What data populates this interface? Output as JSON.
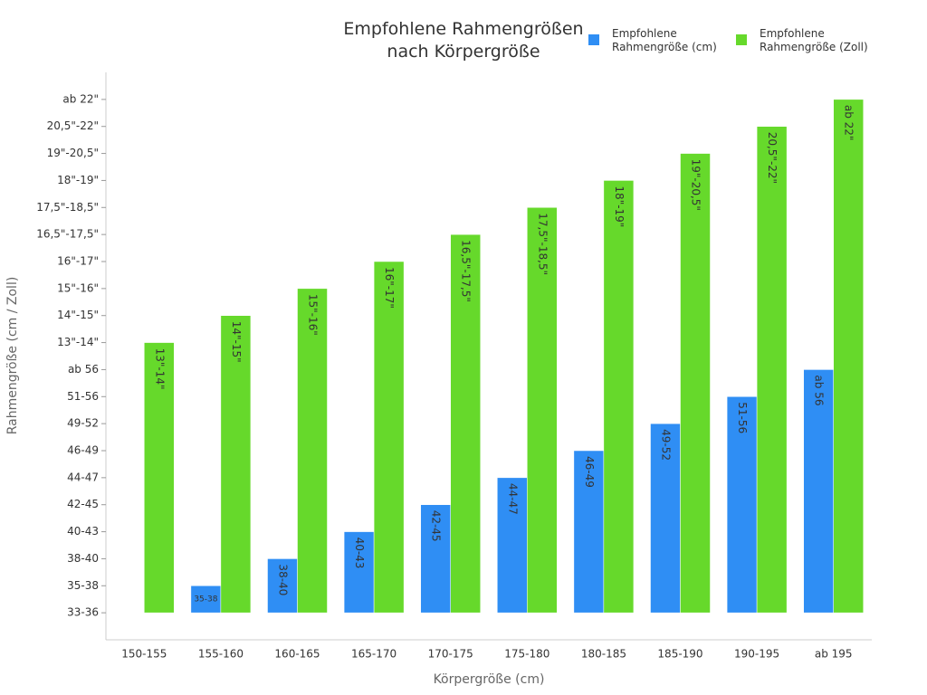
{
  "chart_data": {
    "type": "bar",
    "title": "Empfohlene Rahmengrößen nach Körpergröße",
    "x_label": "Körpergröße (cm)",
    "y_label": "Rahmengröße (cm / Zoll)",
    "categories": [
      "150-155",
      "155-160",
      "160-165",
      "165-170",
      "170-175",
      "175-180",
      "180-185",
      "185-190",
      "190-195",
      "ab 195"
    ],
    "series": [
      {
        "name": "Empfohlene Rahmengröße (cm)",
        "color": "#2f8ef4",
        "values": [
          0,
          1,
          2,
          3,
          4,
          5,
          6,
          7,
          8,
          9
        ],
        "value_labels": [
          null,
          "35-38",
          "38-40",
          "40-43",
          "42-45",
          "44-47",
          "46-49",
          "49-52",
          "51-56",
          "ab 56"
        ]
      },
      {
        "name": "Empfohlene Rahmengröße (Zoll)",
        "color": "#66d92b",
        "values": [
          10,
          11,
          12,
          13,
          14,
          15,
          16,
          17,
          18,
          19
        ],
        "value_labels": [
          "13\"-14\"",
          "14\"-15\"",
          "15\"-16\"",
          "16\"-17\"",
          "16,5\"-17,5\"",
          "17,5\"-18,5\"",
          "18\"-19\"",
          "19\"-20,5\"",
          "20,5\"-22\"",
          "ab 22\""
        ]
      }
    ],
    "ylim": [
      -1,
      20
    ],
    "yticks": [
      {
        "value": 0,
        "label": "33-36"
      },
      {
        "value": 1,
        "label": "35-38"
      },
      {
        "value": 2,
        "label": "38-40"
      },
      {
        "value": 3,
        "label": "40-43"
      },
      {
        "value": 4,
        "label": "42-45"
      },
      {
        "value": 5,
        "label": "44-47"
      },
      {
        "value": 6,
        "label": "46-49"
      },
      {
        "value": 7,
        "label": "49-52"
      },
      {
        "value": 8,
        "label": "51-56"
      },
      {
        "value": 9,
        "label": "ab 56"
      },
      {
        "value": 10,
        "label": "13\"-14\""
      },
      {
        "value": 11,
        "label": "14\"-15\""
      },
      {
        "value": 12,
        "label": "15\"-16\""
      },
      {
        "value": 13,
        "label": "16\"-17\""
      },
      {
        "value": 14,
        "label": "16,5\"-17,5\""
      },
      {
        "value": 15,
        "label": "17,5\"-18,5\""
      },
      {
        "value": 16,
        "label": "18\"-19\""
      },
      {
        "value": 17,
        "label": "19\"-20,5\""
      },
      {
        "value": 18,
        "label": "20,5\"-22\""
      },
      {
        "value": 19,
        "label": "ab 22\""
      }
    ],
    "legend": "top-right",
    "grid": false
  }
}
